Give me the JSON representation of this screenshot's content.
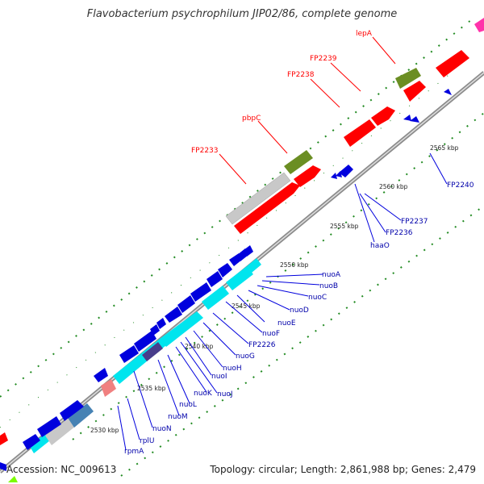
{
  "title": "Flavobacterium psychrophilum JIP02/86, complete genome",
  "footer": {
    "accession": "Accession: NC_009613",
    "topology": "Topology: circular; Length: 2,861,988 bp; Genes: 2,479"
  },
  "colors": {
    "forward_gene": "#ff0000",
    "reverse_gene": "#0000dd",
    "cyan_gene": "#00e5ee",
    "pseudo_gray": "#c8c8c8",
    "olive_gene": "#6b8e23",
    "backbone": "#999999",
    "dot_green": "#228b22"
  },
  "scale_labels": [
    "2530 kbp",
    "2535 kbp",
    "2540 kbp",
    "2545 kbp",
    "2550 kbp",
    "2555 kbp",
    "2560 kbp",
    "2565 kbp"
  ],
  "red_labels": [
    "FP2233",
    "pbpC",
    "FP2238",
    "FP2239",
    "lepA"
  ],
  "blue_labels": [
    "nuoA",
    "nuoB",
    "nuoC",
    "nuoD",
    "nuoE",
    "nuoF",
    "FP2226",
    "nuoG",
    "nuoH",
    "nuoI",
    "nuoJ",
    "nuoK",
    "nuoL",
    "nuoM",
    "nuoN",
    "rplU",
    "rpmA",
    "haaO",
    "FP2236",
    "FP2237",
    "FP2240"
  ]
}
